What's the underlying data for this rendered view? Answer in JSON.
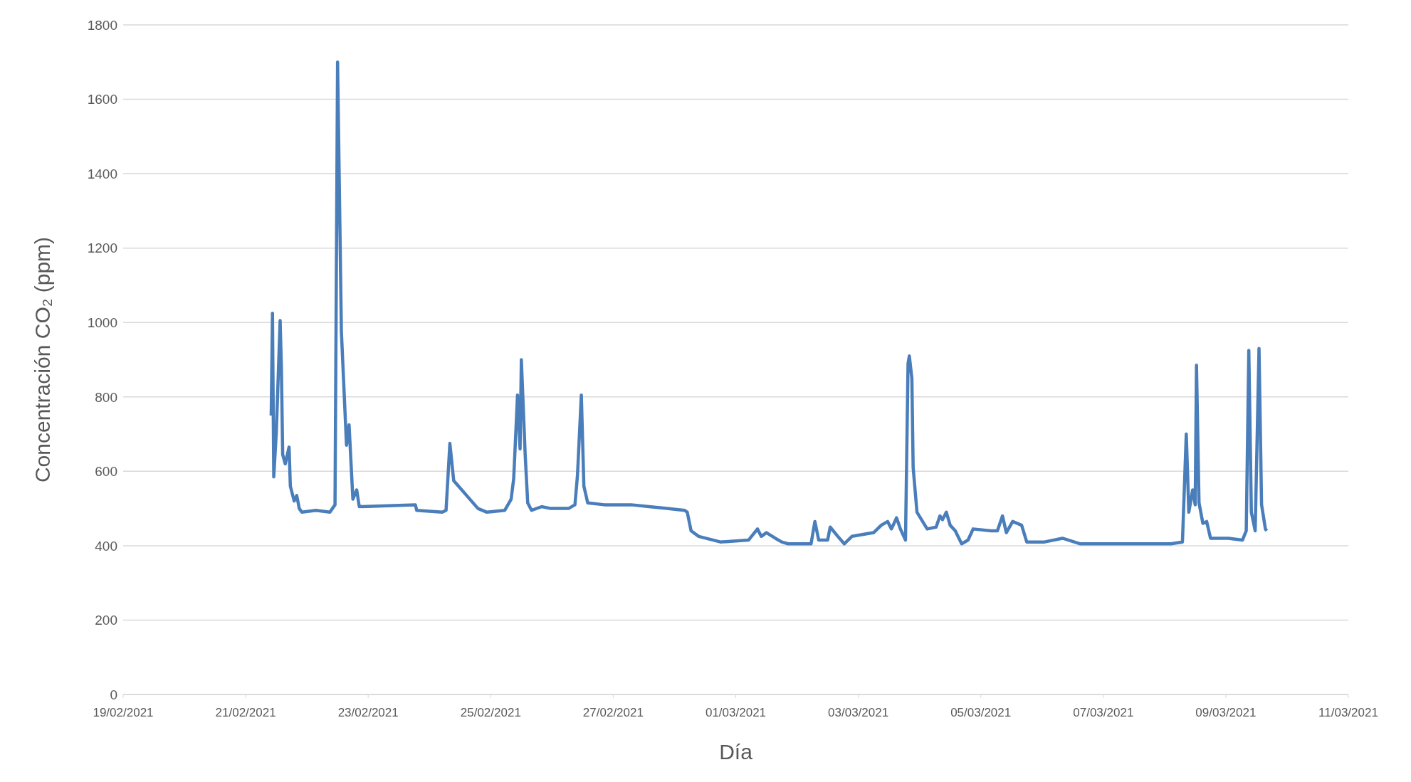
{
  "chart_data": {
    "type": "line",
    "xlabel": "Día",
    "ylabel": "Concentración CO₂ (ppm)",
    "color": "#4a7ebb",
    "grid": "y",
    "marker": "none",
    "line_style": "solid",
    "xlim": [
      "2021-02-19",
      "2021-03-11"
    ],
    "xticks": [
      {
        "value": "2021-02-19",
        "label": "19/02/2021"
      },
      {
        "value": "2021-02-21",
        "label": "21/02/2021"
      },
      {
        "value": "2021-02-23",
        "label": "23/02/2021"
      },
      {
        "value": "2021-02-25",
        "label": "25/02/2021"
      },
      {
        "value": "2021-02-27",
        "label": "27/02/2021"
      },
      {
        "value": "2021-03-01",
        "label": "01/03/2021"
      },
      {
        "value": "2021-03-03",
        "label": "03/03/2021"
      },
      {
        "value": "2021-03-05",
        "label": "05/03/2021"
      },
      {
        "value": "2021-03-07",
        "label": "07/03/2021"
      },
      {
        "value": "2021-03-09",
        "label": "09/03/2021"
      },
      {
        "value": "2021-03-11",
        "label": "11/03/2021"
      }
    ],
    "ylim": [
      0,
      1800
    ],
    "yticks": [
      0,
      200,
      400,
      600,
      800,
      1000,
      1200,
      1400,
      1600,
      1800
    ],
    "x": [
      "2021-02-21T10:00",
      "2021-02-21T10:30",
      "2021-02-21T11:00",
      "2021-02-21T12:00",
      "2021-02-21T13:30",
      "2021-02-21T14:00",
      "2021-02-21T14:30",
      "2021-02-21T15:30",
      "2021-02-21T17:00",
      "2021-02-21T17:30",
      "2021-02-21T19:00",
      "2021-02-21T20:00",
      "2021-02-21T21:00",
      "2021-02-21T22:00",
      "2021-02-22T03:30",
      "2021-02-22T09:00",
      "2021-02-22T11:00",
      "2021-02-22T12:00",
      "2021-02-22T13:30",
      "2021-02-22T15:30",
      "2021-02-22T16:30",
      "2021-02-22T18:00",
      "2021-02-22T19:30",
      "2021-02-22T20:30",
      "2021-02-23T18:30",
      "2021-02-23T19:00",
      "2021-02-24T05:00",
      "2021-02-24T06:30",
      "2021-02-24T08:00",
      "2021-02-24T09:30",
      "2021-02-24T19:00",
      "2021-02-24T22:30",
      "2021-02-25T05:30",
      "2021-02-25T08:00",
      "2021-02-25T09:00",
      "2021-02-25T10:30",
      "2021-02-25T11:30",
      "2021-02-25T12:00",
      "2021-02-25T13:30",
      "2021-02-25T14:30",
      "2021-02-25T16:00",
      "2021-02-25T20:00",
      "2021-02-25T23:30",
      "2021-02-26T06:30",
      "2021-02-26T09:00",
      "2021-02-26T10:00",
      "2021-02-26T11:30",
      "2021-02-26T12:30",
      "2021-02-26T14:00",
      "2021-02-26T20:30",
      "2021-02-27T07:00",
      "2021-02-27T14:00",
      "2021-02-27T21:00",
      "2021-02-28T04:00",
      "2021-02-28T05:00",
      "2021-02-28T06:30",
      "2021-02-28T09:30",
      "2021-02-28T18:00",
      "2021-03-01T05:00",
      "2021-03-01T08:30",
      "2021-03-01T10:00",
      "2021-03-01T12:00",
      "2021-03-01T15:30",
      "2021-03-01T18:00",
      "2021-03-01T20:30",
      "2021-03-02T05:30",
      "2021-03-02T07:00",
      "2021-03-02T08:30",
      "2021-03-02T12:00",
      "2021-03-02T13:00",
      "2021-03-02T16:00",
      "2021-03-02T18:30",
      "2021-03-02T21:30",
      "2021-03-03T06:00",
      "2021-03-03T09:00",
      "2021-03-03T11:30",
      "2021-03-03T13:00",
      "2021-03-03T15:00",
      "2021-03-03T16:30",
      "2021-03-03T18:30",
      "2021-03-03T19:30",
      "2021-03-03T20:00",
      "2021-03-03T21:00",
      "2021-03-03T21:30",
      "2021-03-03T23:00",
      "2021-03-04T03:00",
      "2021-03-04T06:30",
      "2021-03-04T08:00",
      "2021-03-04T09:00",
      "2021-03-04T10:30",
      "2021-03-04T12:00",
      "2021-03-04T14:00",
      "2021-03-04T16:30",
      "2021-03-04T19:00",
      "2021-03-04T21:00",
      "2021-03-05T04:00",
      "2021-03-05T06:30",
      "2021-03-05T08:30",
      "2021-03-05T10:00",
      "2021-03-05T12:30",
      "2021-03-05T16:00",
      "2021-03-05T18:00",
      "2021-03-06T01:00",
      "2021-03-06T08:00",
      "2021-03-06T15:00",
      "2021-03-06T18:30",
      "2021-03-07T05:00",
      "2021-03-07T15:30",
      "2021-03-08T02:30",
      "2021-03-08T07:00",
      "2021-03-08T08:30",
      "2021-03-08T09:30",
      "2021-03-08T11:00",
      "2021-03-08T12:00",
      "2021-03-08T12:30",
      "2021-03-08T13:30",
      "2021-03-08T15:00",
      "2021-03-08T16:30",
      "2021-03-08T18:00",
      "2021-03-08T20:00",
      "2021-03-09T01:00",
      "2021-03-09T06:30",
      "2021-03-09T08:00",
      "2021-03-09T09:00",
      "2021-03-09T10:00",
      "2021-03-09T11:30",
      "2021-03-09T13:00",
      "2021-03-09T14:00",
      "2021-03-09T15:30",
      "2021-03-09T16:00"
    ],
    "values": [
      750,
      1025,
      585,
      705,
      1005,
      875,
      645,
      620,
      665,
      560,
      520,
      535,
      500,
      490,
      495,
      490,
      510,
      1700,
      975,
      670,
      725,
      525,
      550,
      505,
      510,
      495,
      490,
      495,
      675,
      575,
      500,
      490,
      495,
      525,
      580,
      805,
      660,
      900,
      645,
      515,
      495,
      505,
      500,
      500,
      510,
      590,
      805,
      560,
      515,
      510,
      510,
      505,
      500,
      495,
      490,
      440,
      425,
      410,
      415,
      445,
      425,
      435,
      420,
      410,
      405,
      405,
      465,
      415,
      415,
      450,
      425,
      405,
      425,
      435,
      455,
      465,
      445,
      475,
      445,
      415,
      890,
      910,
      850,
      610,
      490,
      445,
      450,
      480,
      470,
      490,
      455,
      440,
      405,
      415,
      445,
      440,
      440,
      480,
      435,
      465,
      455,
      410,
      410,
      420,
      405,
      405,
      405,
      405,
      405,
      410,
      700,
      490,
      550,
      510,
      885,
      515,
      460,
      465,
      420,
      420,
      420,
      415,
      440,
      925,
      490,
      440,
      930,
      510,
      445,
      440
    ]
  }
}
